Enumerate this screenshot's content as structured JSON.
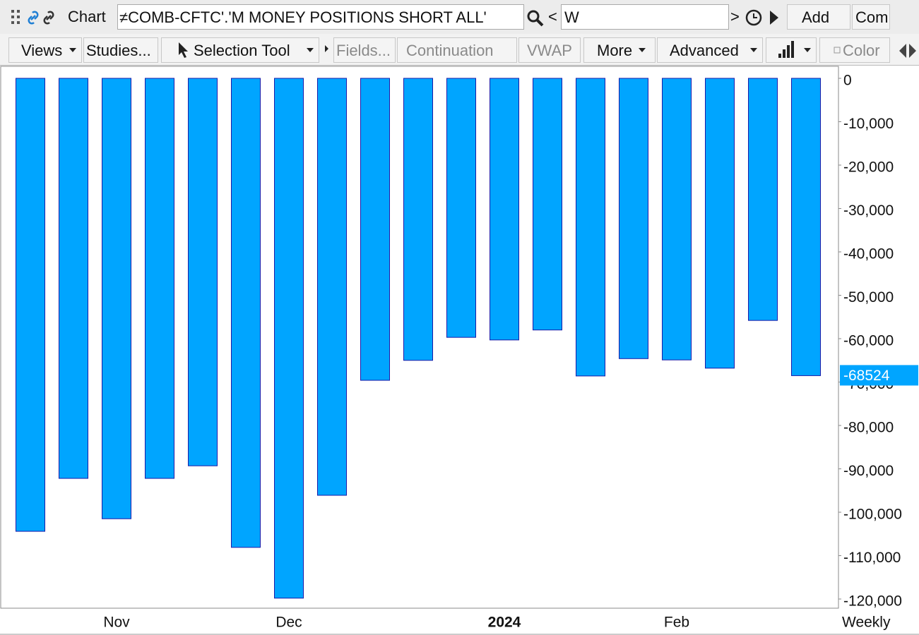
{
  "toolbar": {
    "row1": {
      "chart_label": "Chart",
      "symbol": "≠COMB-CFTC'.'M MONEY POSITIONS SHORT ALL'",
      "prev": "<",
      "period": "W",
      "next": ">",
      "add": "Add",
      "com": "Com"
    },
    "row2": {
      "views": "Views",
      "studies": "Studies...",
      "selection_tool": "Selection Tool",
      "fields": "Fields...",
      "continuation": "Continuation",
      "vwap": "VWAP",
      "more": "More",
      "advanced": "Advanced",
      "color": "Color"
    }
  },
  "chart_data": {
    "type": "bar",
    "categories": [
      null,
      null,
      "Nov",
      null,
      null,
      null,
      "Dec",
      null,
      null,
      null,
      null,
      "2024",
      null,
      null,
      null,
      "Feb",
      null,
      null,
      null
    ],
    "values": [
      -104400,
      -92200,
      -101500,
      -92200,
      -89300,
      -108100,
      -119800,
      -96100,
      -69600,
      -65000,
      -59700,
      -60300,
      -58000,
      -68600,
      -64600,
      -64900,
      -66800,
      -55800,
      -68524
    ],
    "color": "#00a5ff",
    "edge_color": "#1a1aa8",
    "ylim": [
      -120000,
      0
    ],
    "yticks": [
      0,
      {
        "value": -10000,
        "label": "-10,000"
      },
      {
        "value": -20000,
        "label": "-20,000"
      },
      {
        "value": -30000,
        "label": "-30,000"
      },
      {
        "value": -40000,
        "label": "-40,000"
      },
      {
        "value": -50000,
        "label": "-50,000"
      },
      {
        "value": -60000,
        "label": "-60,000"
      },
      {
        "value": -70000,
        "label": "-70,000"
      },
      {
        "value": -80000,
        "label": "-80,000"
      },
      {
        "value": -90000,
        "label": "-90,000"
      },
      {
        "value": -100000,
        "label": "-100,000"
      },
      {
        "value": -110000,
        "label": "-110,000"
      },
      {
        "value": -120000,
        "label": "-120,000"
      }
    ],
    "period_label": "Weekly",
    "grid": false
  }
}
